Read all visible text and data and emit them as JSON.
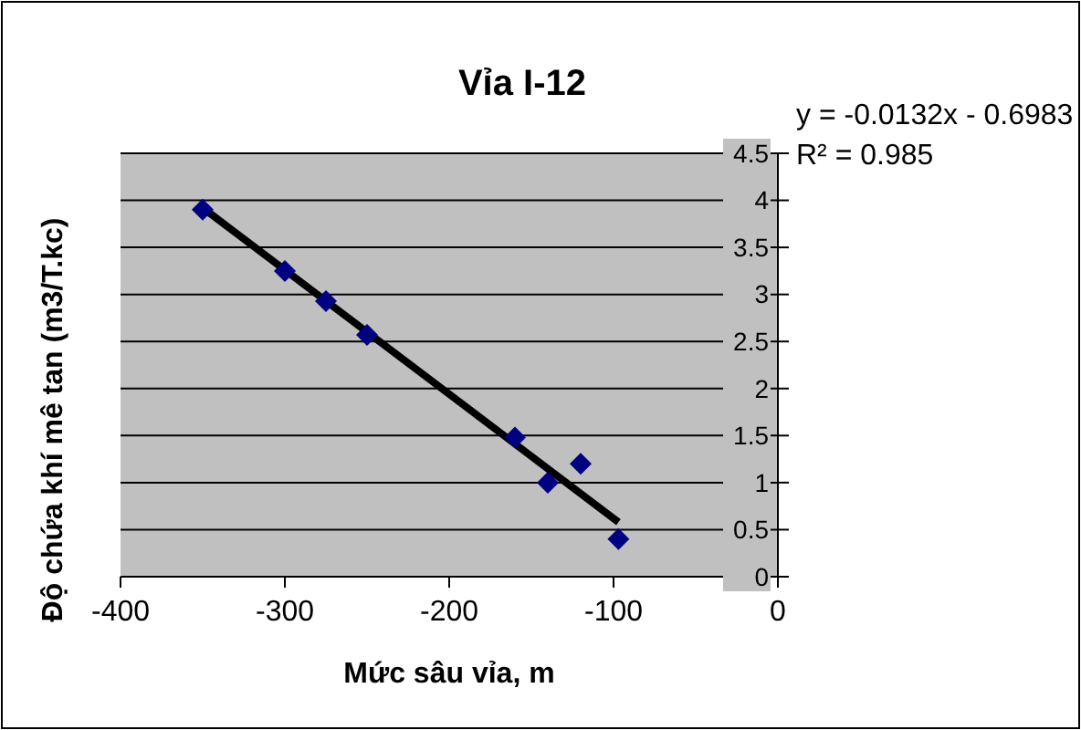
{
  "chart_data": {
    "type": "scatter",
    "title": "Vỉa I-12",
    "xlabel": "Mức sâu vỉa, m",
    "ylabel": "Độ chứa khí mê tan (m3/T.kc)",
    "xlim": [
      -400,
      0
    ],
    "xticks": [
      -400,
      -300,
      -200,
      -100,
      0
    ],
    "ylim": [
      0,
      4.5
    ],
    "yticks": [
      0,
      0.5,
      1,
      1.5,
      2,
      2.5,
      3,
      3.5,
      4,
      4.5
    ],
    "grid": "y",
    "series": [
      {
        "color": "#000080",
        "marker": "diamond",
        "x": [
          -350,
          -300,
          -275,
          -250,
          -160,
          -140,
          -120,
          -97
        ],
        "values": [
          3.9,
          3.25,
          2.93,
          2.57,
          1.48,
          1.0,
          1.2,
          0.4
        ]
      },
      {
        "type": "line",
        "color": "#000000",
        "x": [
          -350,
          -97
        ],
        "values": [
          3.92,
          0.58
        ]
      }
    ],
    "annotations": [
      "y = -0.0132x - 0.6983",
      "R² = 0.985"
    ]
  }
}
